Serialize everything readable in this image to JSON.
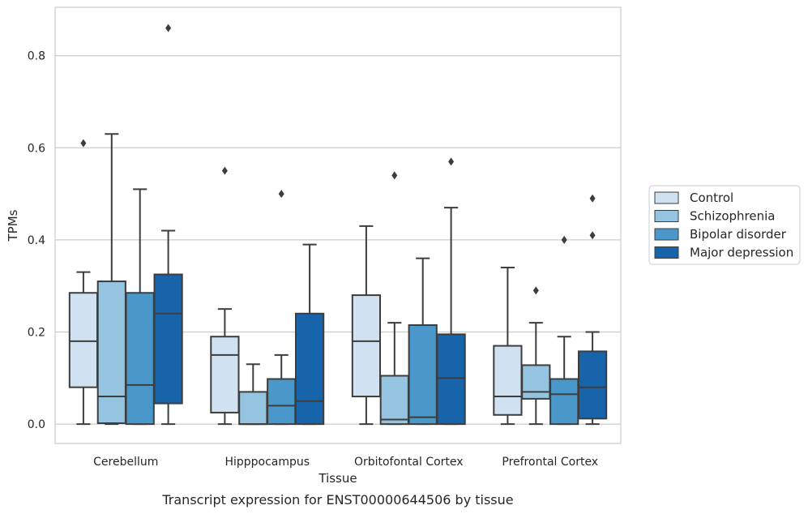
{
  "chart_data": {
    "type": "box",
    "xlabel": "Tissue",
    "ylabel": "TPMs",
    "caption": "Transcript expression for ENST00000644506 by tissue",
    "ylim": [
      -0.042,
      0.905
    ],
    "yticks": [
      0.0,
      0.2,
      0.4,
      0.6,
      0.8
    ],
    "ytick_labels": [
      "0.0",
      "0.2",
      "0.4",
      "0.6",
      "0.8"
    ],
    "grid": "horizontal",
    "legend_placement": "right",
    "categories": [
      "Cerebellum",
      "Hipppocampus",
      "Orbitofontal Cortex",
      "Prefrontal Cortex"
    ],
    "series": [
      {
        "name": "Control",
        "color": "#d0e1f2",
        "boxes": [
          {
            "whisker_low": 0.0,
            "q1": 0.08,
            "median": 0.18,
            "q3": 0.285,
            "whisker_high": 0.33,
            "outliers": [
              0.61
            ]
          },
          {
            "whisker_low": 0.0,
            "q1": 0.025,
            "median": 0.15,
            "q3": 0.19,
            "whisker_high": 0.25,
            "outliers": [
              0.55
            ]
          },
          {
            "whisker_low": 0.0,
            "q1": 0.06,
            "median": 0.18,
            "q3": 0.28,
            "whisker_high": 0.43,
            "outliers": []
          },
          {
            "whisker_low": 0.0,
            "q1": 0.02,
            "median": 0.06,
            "q3": 0.17,
            "whisker_high": 0.34,
            "outliers": []
          }
        ]
      },
      {
        "name": "Schizophrenia",
        "color": "#94c4df",
        "boxes": [
          {
            "whisker_low": 0.0,
            "q1": 0.002,
            "median": 0.06,
            "q3": 0.31,
            "whisker_high": 0.63,
            "outliers": []
          },
          {
            "whisker_low": 0.0,
            "q1": 0.0,
            "median": 0.0,
            "q3": 0.07,
            "whisker_high": 0.13,
            "outliers": []
          },
          {
            "whisker_low": 0.0,
            "q1": 0.0,
            "median": 0.01,
            "q3": 0.105,
            "whisker_high": 0.22,
            "outliers": [
              0.54
            ]
          },
          {
            "whisker_low": 0.0,
            "q1": 0.055,
            "median": 0.07,
            "q3": 0.128,
            "whisker_high": 0.22,
            "outliers": [
              0.29
            ]
          }
        ]
      },
      {
        "name": "Bipolar disorder",
        "color": "#4a98c9",
        "boxes": [
          {
            "whisker_low": 0.0,
            "q1": 0.0,
            "median": 0.085,
            "q3": 0.285,
            "whisker_high": 0.51,
            "outliers": []
          },
          {
            "whisker_low": 0.0,
            "q1": 0.0,
            "median": 0.04,
            "q3": 0.098,
            "whisker_high": 0.15,
            "outliers": [
              0.5
            ]
          },
          {
            "whisker_low": 0.0,
            "q1": 0.0,
            "median": 0.015,
            "q3": 0.215,
            "whisker_high": 0.36,
            "outliers": []
          },
          {
            "whisker_low": 0.0,
            "q1": 0.0,
            "median": 0.065,
            "q3": 0.098,
            "whisker_high": 0.19,
            "outliers": [
              0.4
            ]
          }
        ]
      },
      {
        "name": "Major depression",
        "color": "#1764ab",
        "boxes": [
          {
            "whisker_low": 0.0,
            "q1": 0.045,
            "median": 0.24,
            "q3": 0.325,
            "whisker_high": 0.42,
            "outliers": [
              0.86
            ]
          },
          {
            "whisker_low": 0.0,
            "q1": 0.0,
            "median": 0.05,
            "q3": 0.24,
            "whisker_high": 0.39,
            "outliers": []
          },
          {
            "whisker_low": 0.0,
            "q1": 0.0,
            "median": 0.1,
            "q3": 0.195,
            "whisker_high": 0.47,
            "outliers": [
              0.57
            ]
          },
          {
            "whisker_low": 0.0,
            "q1": 0.012,
            "median": 0.08,
            "q3": 0.158,
            "whisker_high": 0.2,
            "outliers": [
              0.41,
              0.49
            ]
          }
        ]
      }
    ]
  }
}
